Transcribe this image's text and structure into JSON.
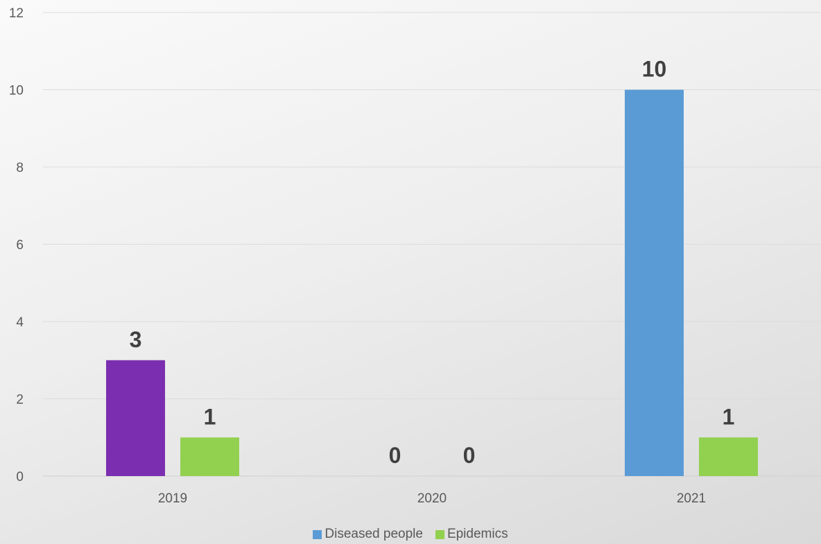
{
  "chart_data": {
    "type": "bar",
    "categories": [
      "2019",
      "2020",
      "2021"
    ],
    "series": [
      {
        "name": "Diseased people",
        "color": "#5b9bd5",
        "values": [
          3,
          0,
          10
        ],
        "point_colors": [
          "#7b2fb0",
          "#5b9bd5",
          "#5b9bd5"
        ]
      },
      {
        "name": "Epidemics",
        "color": "#92d050",
        "values": [
          1,
          0,
          1
        ]
      }
    ],
    "ylim": [
      0,
      12
    ],
    "yticks": [
      0,
      2,
      4,
      6,
      8,
      10,
      12
    ],
    "grid": true,
    "legend_position": "bottom",
    "data_labels": true
  }
}
